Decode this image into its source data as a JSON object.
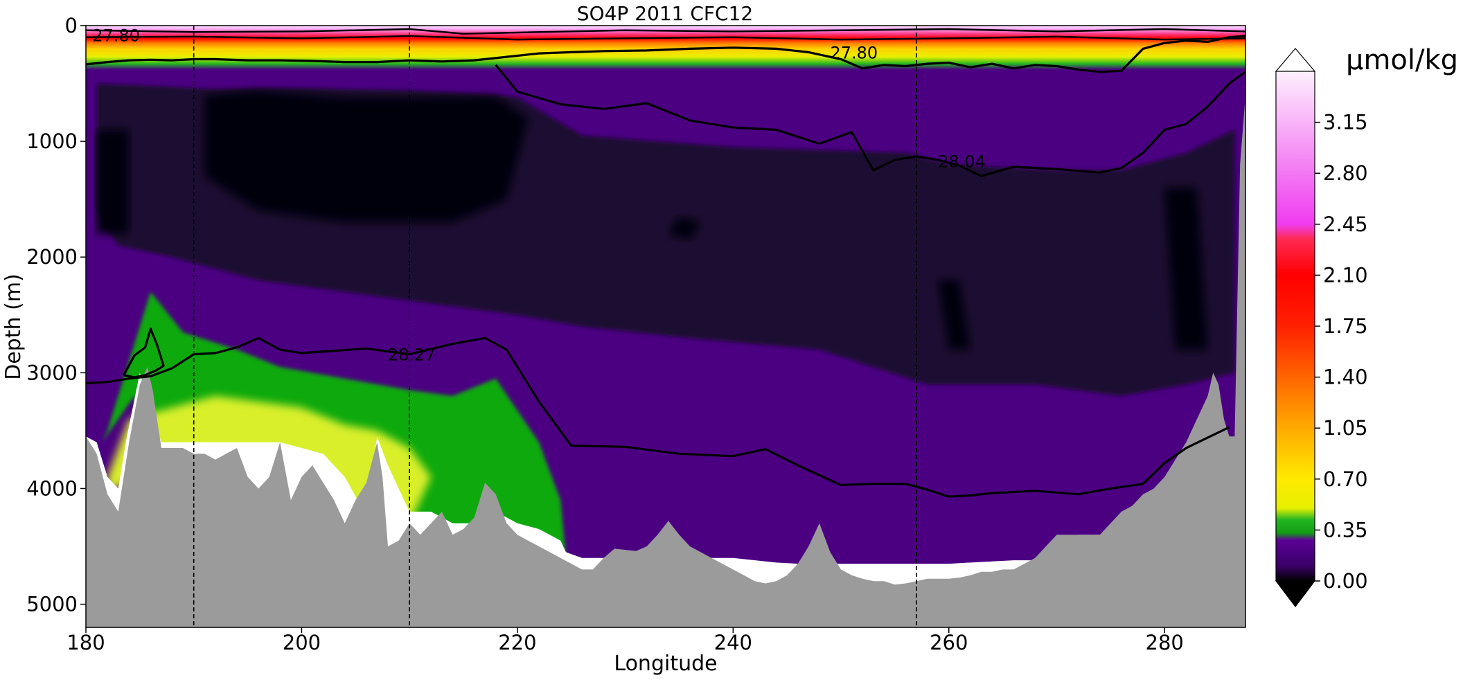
{
  "chart_data": {
    "type": "heatmap",
    "title": "SO4P 2011 CFC12",
    "xlabel": "Longitude",
    "ylabel": "Depth (m)",
    "xlim": [
      180,
      287.5
    ],
    "ylim": [
      5200,
      0
    ],
    "y_inverted": true,
    "x_ticks": [
      "180",
      "200",
      "220",
      "240",
      "260",
      "280"
    ],
    "x_tick_values": [
      180,
      200,
      220,
      240,
      260,
      280
    ],
    "y_ticks": [
      "0",
      "1000",
      "2000",
      "3000",
      "4000",
      "5000"
    ],
    "y_tick_values": [
      0,
      1000,
      2000,
      3000,
      4000,
      5000
    ],
    "grid": false,
    "colorbar": {
      "unit": "µmol/kg",
      "range": [
        0.0,
        3.5
      ],
      "extend": "both",
      "ticks": [
        "0.00",
        "0.35",
        "0.70",
        "1.05",
        "1.40",
        "1.75",
        "2.10",
        "2.45",
        "2.80",
        "3.15"
      ],
      "tick_values": [
        0.0,
        0.35,
        0.7,
        1.05,
        1.4,
        1.75,
        2.1,
        2.45,
        2.8,
        3.15
      ],
      "stops": [
        {
          "value": 0.0,
          "color": "#000000"
        },
        {
          "value": 0.1,
          "color": "#3a0066"
        },
        {
          "value": 0.2,
          "color": "#4b0082"
        },
        {
          "value": 0.28,
          "color": "#5c0096"
        },
        {
          "value": 0.33,
          "color": "#139d13"
        },
        {
          "value": 0.42,
          "color": "#22b622"
        },
        {
          "value": 0.5,
          "color": "#e6f000"
        },
        {
          "value": 0.7,
          "color": "#ffea00"
        },
        {
          "value": 1.05,
          "color": "#ffaa00"
        },
        {
          "value": 1.4,
          "color": "#ff6400"
        },
        {
          "value": 1.75,
          "color": "#ff2000"
        },
        {
          "value": 2.1,
          "color": "#ff0000"
        },
        {
          "value": 2.35,
          "color": "#ff2a55"
        },
        {
          "value": 2.45,
          "color": "#f03cf0"
        },
        {
          "value": 2.8,
          "color": "#f377f3"
        },
        {
          "value": 3.15,
          "color": "#f9b4f9"
        },
        {
          "value": 3.5,
          "color": "#fdf0fd"
        }
      ]
    },
    "colors": {
      "bathymetry": "#9b9b9b",
      "deep_core": "#050008",
      "deep_dark": "#1a0830",
      "mid_purple": "#4b0082",
      "green": "#0fa90f",
      "yellow_green": "#d8ef2a",
      "contour": "#000000"
    },
    "station_lines_x": [
      190,
      210,
      257
    ],
    "isopycnals": [
      {
        "label": "27.80",
        "label_positions": [
          [
            180.6,
            80
          ],
          [
            249,
            230
          ]
        ],
        "x": [
          180,
          182,
          184,
          186,
          188,
          190,
          192,
          195,
          198,
          201,
          204,
          207,
          210,
          213,
          216,
          219,
          222,
          225,
          228,
          232,
          236,
          240,
          244,
          247,
          250,
          252,
          254,
          256,
          258,
          260,
          262,
          264,
          266,
          268,
          270,
          272,
          274,
          276,
          278,
          280,
          282,
          284,
          286,
          287.5
        ],
        "y": [
          335,
          315,
          300,
          295,
          300,
          290,
          290,
          300,
          300,
          305,
          315,
          315,
          300,
          310,
          300,
          270,
          240,
          230,
          220,
          215,
          200,
          190,
          200,
          230,
          290,
          370,
          340,
          350,
          330,
          320,
          360,
          330,
          370,
          340,
          350,
          380,
          400,
          390,
          200,
          150,
          130,
          140,
          100,
          90
        ]
      },
      {
        "label": "28.04",
        "label_positions": [
          [
            259,
            1170
          ]
        ],
        "x": [
          218,
          220,
          224,
          228,
          232,
          236,
          240,
          244,
          248,
          251,
          253,
          255,
          257,
          259,
          261,
          263,
          266,
          270,
          274,
          276,
          278,
          280,
          282,
          284,
          286,
          287.5
        ],
        "y": [
          340,
          570,
          680,
          720,
          670,
          820,
          880,
          900,
          1020,
          920,
          1250,
          1160,
          1130,
          1160,
          1210,
          1300,
          1220,
          1240,
          1270,
          1230,
          1100,
          900,
          850,
          700,
          500,
          400
        ]
      },
      {
        "label": "28.27",
        "label_positions": [
          [
            208,
            2840
          ]
        ],
        "x": [
          180,
          182,
          184,
          186,
          188,
          190,
          192,
          194,
          196,
          198,
          200,
          203,
          206,
          210,
          214,
          217,
          219,
          222,
          225,
          230,
          235,
          240,
          243,
          246,
          250,
          253,
          256,
          258,
          260,
          262,
          264,
          268,
          272,
          275,
          278,
          280,
          282,
          284,
          286
        ],
        "y": [
          3090,
          3080,
          3050,
          3030,
          2960,
          2840,
          2830,
          2780,
          2700,
          2800,
          2830,
          2810,
          2790,
          2840,
          2750,
          2700,
          2800,
          3250,
          3630,
          3640,
          3700,
          3720,
          3660,
          3800,
          3970,
          3960,
          3960,
          4010,
          4070,
          4060,
          4040,
          4020,
          4050,
          4000,
          3960,
          3780,
          3650,
          3560,
          3470
        ]
      },
      {
        "label": "",
        "label_positions": [],
        "x": [
          183.5,
          184.5,
          185.5,
          186,
          186.6,
          187.2,
          186.5,
          185.5,
          184.5,
          183.5
        ],
        "y": [
          3020,
          2850,
          2780,
          2620,
          2760,
          2940,
          2980,
          3020,
          3040,
          3020
        ]
      }
    ],
    "surface_contours": [
      {
        "x": [
          180,
          190,
          200,
          210,
          215,
          220,
          230,
          240,
          250,
          260,
          270,
          280,
          287.5
        ],
        "y": [
          40,
          55,
          50,
          30,
          70,
          60,
          40,
          50,
          40,
          30,
          50,
          30,
          50
        ]
      },
      {
        "x": [
          180,
          190,
          200,
          210,
          220,
          230,
          240,
          250,
          260,
          270,
          280,
          287.5
        ],
        "y": [
          100,
          95,
          110,
          90,
          120,
          110,
          100,
          120,
          110,
          95,
          120,
          110
        ]
      }
    ],
    "field_regions": [
      {
        "level": "deep_dark",
        "x": [
          181,
          186,
          192,
          200,
          210,
          218,
          220,
          226,
          240,
          256,
          260,
          270,
          276,
          282,
          286.5,
          286.5,
          282,
          276,
          268,
          258,
          248,
          236,
          226,
          220,
          212,
          204,
          196,
          188,
          183,
          181
        ],
        "y": [
          500,
          520,
          550,
          540,
          560,
          600,
          620,
          950,
          1050,
          1100,
          1200,
          1250,
          1250,
          1100,
          900,
          3000,
          3100,
          3200,
          3100,
          3100,
          2800,
          2700,
          2600,
          2500,
          2400,
          2300,
          2200,
          2000,
          1900,
          1600
        ]
      },
      {
        "level": "deep_core",
        "x": [
          181,
          184,
          184,
          181
        ],
        "y": [
          900,
          900,
          1800,
          1800
        ]
      },
      {
        "level": "deep_core",
        "x": [
          191,
          196,
          204,
          210,
          218,
          221,
          219,
          214,
          204,
          196,
          191
        ],
        "y": [
          600,
          560,
          620,
          620,
          610,
          800,
          1500,
          1700,
          1700,
          1600,
          1300
        ]
      },
      {
        "level": "deep_core",
        "x": [
          235,
          237,
          236,
          234
        ],
        "y": [
          1650,
          1700,
          1850,
          1800
        ]
      },
      {
        "level": "deep_core",
        "x": [
          259,
          261,
          262,
          260
        ],
        "y": [
          2200,
          2200,
          2800,
          2800
        ]
      },
      {
        "level": "deep_core",
        "x": [
          280,
          283,
          284,
          281
        ],
        "y": [
          1400,
          1400,
          2800,
          2800
        ]
      },
      {
        "level": "green",
        "x": [
          182,
          186,
          189,
          194,
          198,
          204,
          210,
          214,
          218,
          222,
          224,
          224.5,
          220,
          214,
          206,
          198,
          190,
          186,
          184.5,
          181.5
        ],
        "y": [
          3500,
          2300,
          2650,
          2800,
          2950,
          3050,
          3150,
          3200,
          3050,
          3600,
          4100,
          4600,
          4600,
          4400,
          4200,
          4000,
          3800,
          3600,
          3200,
          3600
        ]
      },
      {
        "level": "yellow_green",
        "x": [
          182,
          184,
          188,
          192,
          196,
          200,
          204,
          207,
          210,
          212,
          210,
          206,
          202,
          198,
          194,
          190,
          186,
          182
        ],
        "y": [
          3900,
          3400,
          3300,
          3200,
          3250,
          3300,
          3450,
          3500,
          3650,
          3900,
          4300,
          4200,
          3900,
          3950,
          3800,
          3900,
          3800,
          4050
        ]
      }
    ],
    "bathymetry": {
      "x": [
        180,
        181,
        182,
        183,
        184,
        185,
        185.7,
        186.2,
        187,
        188,
        189,
        190,
        191,
        192,
        193,
        194,
        195,
        196,
        197,
        198,
        199,
        200,
        201,
        202,
        203,
        204,
        205,
        206,
        207,
        207.5,
        208,
        209,
        210,
        211,
        212,
        213,
        214,
        215,
        216,
        217,
        218,
        219,
        220,
        221,
        222,
        223,
        224,
        225,
        226,
        227,
        228,
        229,
        230,
        231,
        232,
        233,
        234,
        235,
        236,
        237,
        238,
        239,
        240,
        241,
        242,
        243,
        244,
        245,
        246,
        247,
        248,
        249,
        250,
        251,
        252,
        253,
        254,
        255,
        256,
        257,
        258,
        259,
        260,
        261,
        262,
        263,
        264,
        265,
        266,
        267,
        268,
        269,
        270,
        271,
        272,
        273,
        274,
        275,
        276,
        277,
        278,
        279,
        280,
        281,
        282,
        283,
        284,
        284.5,
        285,
        285.5,
        286,
        286.5,
        287,
        287.5
      ],
      "y": [
        3550,
        3700,
        4050,
        4200,
        3600,
        3100,
        2950,
        3150,
        3650,
        3650,
        3650,
        3700,
        3700,
        3750,
        3700,
        3650,
        3900,
        4000,
        3900,
        3600,
        4100,
        3900,
        3800,
        3950,
        4100,
        4300,
        4100,
        3950,
        3600,
        3900,
        4500,
        4450,
        4300,
        4400,
        4300,
        4200,
        4400,
        4350,
        4250,
        3950,
        4050,
        4300,
        4400,
        4450,
        4500,
        4550,
        4600,
        4650,
        4700,
        4700,
        4600,
        4520,
        4530,
        4540,
        4500,
        4400,
        4280,
        4400,
        4500,
        4550,
        4600,
        4650,
        4700,
        4750,
        4800,
        4820,
        4800,
        4750,
        4650,
        4500,
        4300,
        4550,
        4700,
        4750,
        4780,
        4800,
        4800,
        4830,
        4820,
        4800,
        4780,
        4780,
        4780,
        4770,
        4750,
        4720,
        4720,
        4700,
        4700,
        4650,
        4600,
        4500,
        4400,
        4400,
        4400,
        4400,
        4400,
        4300,
        4200,
        4150,
        4050,
        4000,
        3900,
        3750,
        3600,
        3400,
        3200,
        3000,
        3100,
        3400,
        3550,
        3550,
        1200,
        600
      ]
    },
    "white_gap": {
      "x": [
        180,
        181,
        182,
        183,
        183.8,
        185,
        187,
        190,
        194,
        198,
        202,
        204,
        205.5,
        206,
        207,
        208,
        210,
        212,
        214,
        216,
        218,
        220,
        222,
        223,
        224,
        224.5,
        226,
        230,
        235,
        240,
        244,
        246,
        248,
        250,
        252,
        256,
        260,
        264,
        266,
        268,
        269,
        270,
        272,
        274,
        275,
        276,
        278,
        280,
        281,
        282,
        284
      ],
      "y": [
        3550,
        3600,
        3900,
        4000,
        3550,
        3000,
        3600,
        3600,
        3600,
        3600,
        3700,
        3900,
        4150,
        4200,
        3550,
        3800,
        4200,
        4200,
        4300,
        4300,
        4200,
        4300,
        4350,
        4400,
        4450,
        4550,
        4600,
        4600,
        4600,
        4600,
        4640,
        4650,
        4650,
        4650,
        4650,
        4650,
        4650,
        4630,
        4620,
        4620,
        4550,
        4500,
        4400,
        4400,
        4350,
        4300,
        4200,
        4100,
        3900,
        3900,
        3800
      ]
    }
  }
}
